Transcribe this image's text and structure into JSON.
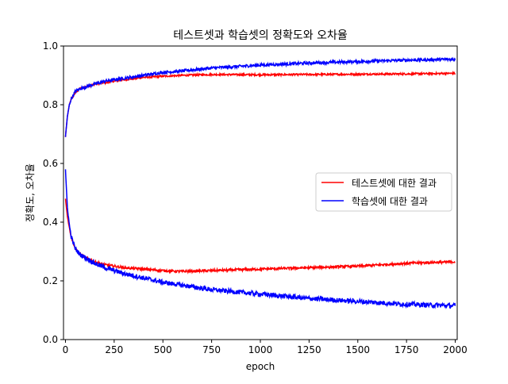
{
  "chart_data": {
    "type": "line",
    "title": "테스트셋과 학습셋의 정확도와 오차율",
    "xlabel": "epoch",
    "ylabel": "정확도, 오차율",
    "xlim": [
      -10,
      2010
    ],
    "ylim": [
      0.0,
      1.0
    ],
    "xticks": [
      "0",
      "250",
      "500",
      "750",
      "1000",
      "1250",
      "1500",
      "1750",
      "2000"
    ],
    "yticks": [
      "0.0",
      "0.2",
      "0.4",
      "0.6",
      "0.8",
      "1.0"
    ],
    "grid": false,
    "legend_position": "center-right",
    "legend": [
      "테스트셋에 대한 결과",
      "학습셋에 대한 결과"
    ],
    "colors": [
      "#ff0000",
      "#0000ff"
    ],
    "x": [
      0,
      10,
      20,
      30,
      50,
      75,
      100,
      150,
      200,
      300,
      400,
      500,
      600,
      750,
      1000,
      1250,
      1500,
      1750,
      2000
    ],
    "series": [
      {
        "legend_entry": 0,
        "color": "#ff0000",
        "noise": 0.003,
        "y": [
          0.69,
          0.76,
          0.8,
          0.82,
          0.84,
          0.855,
          0.86,
          0.87,
          0.875,
          0.885,
          0.893,
          0.897,
          0.9,
          0.903,
          0.902,
          0.903,
          0.904,
          0.905,
          0.907
        ]
      },
      {
        "legend_entry": 1,
        "color": "#0000ff",
        "noise": 0.005,
        "y": [
          0.69,
          0.76,
          0.8,
          0.82,
          0.845,
          0.855,
          0.86,
          0.87,
          0.88,
          0.89,
          0.9,
          0.91,
          0.915,
          0.925,
          0.935,
          0.942,
          0.947,
          0.952,
          0.955
        ]
      },
      {
        "legend_entry": 0,
        "color": "#ff0000",
        "noise": 0.004,
        "y": [
          0.48,
          0.42,
          0.38,
          0.35,
          0.31,
          0.29,
          0.28,
          0.265,
          0.255,
          0.245,
          0.24,
          0.235,
          0.232,
          0.235,
          0.24,
          0.245,
          0.25,
          0.26,
          0.265
        ]
      },
      {
        "legend_entry": 1,
        "color": "#0000ff",
        "noise": 0.008,
        "y": [
          0.58,
          0.45,
          0.39,
          0.35,
          0.31,
          0.29,
          0.28,
          0.26,
          0.245,
          0.225,
          0.21,
          0.195,
          0.185,
          0.17,
          0.155,
          0.14,
          0.13,
          0.12,
          0.115
        ]
      }
    ]
  }
}
